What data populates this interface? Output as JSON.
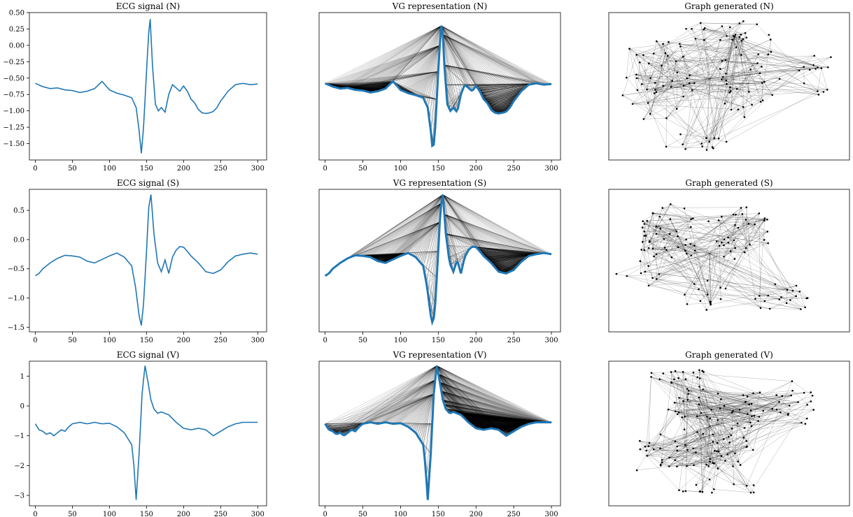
{
  "figure": {
    "background": "#ffffff",
    "line_color": "#1f77b4",
    "edge_color": "#000000",
    "node_color": "#000000"
  },
  "chart_data": [
    {
      "id": "ecg-n",
      "type": "line",
      "title": "ECG signal (N)",
      "xlim": [
        -8,
        312
      ],
      "ylim": [
        -1.75,
        0.5
      ],
      "xticks": [
        0,
        50,
        100,
        150,
        200,
        250,
        300
      ],
      "xtick_labels": [
        "0",
        "50",
        "100",
        "150",
        "200",
        "250",
        "300"
      ],
      "yticks": [
        0.5,
        0.25,
        0.0,
        -0.25,
        -0.5,
        -0.75,
        -1.0,
        -1.25,
        -1.5
      ],
      "ytick_labels": [
        "0.50",
        "0.25",
        "0.00",
        "−0.25",
        "−0.50",
        "−0.75",
        "−1.00",
        "−1.25",
        "−1.50"
      ],
      "x": [
        0,
        10,
        20,
        30,
        40,
        50,
        60,
        70,
        80,
        90,
        100,
        110,
        120,
        130,
        136,
        140,
        143,
        146,
        150,
        153,
        155,
        158,
        162,
        166,
        170,
        175,
        180,
        185,
        190,
        195,
        200,
        205,
        210,
        215,
        220,
        225,
        230,
        235,
        240,
        245,
        250,
        260,
        270,
        280,
        290,
        300
      ],
      "y": [
        -0.58,
        -0.63,
        -0.66,
        -0.65,
        -0.68,
        -0.69,
        -0.72,
        -0.7,
        -0.66,
        -0.55,
        -0.68,
        -0.73,
        -0.76,
        -0.8,
        -0.95,
        -1.3,
        -1.65,
        -1.25,
        -0.4,
        0.2,
        0.4,
        -0.3,
        -0.9,
        -1.0,
        -0.95,
        -1.02,
        -0.75,
        -0.6,
        -0.65,
        -0.7,
        -0.62,
        -0.7,
        -0.82,
        -0.88,
        -0.98,
        -1.03,
        -1.04,
        -1.03,
        -1.01,
        -0.95,
        -0.85,
        -0.7,
        -0.6,
        -0.58,
        -0.6,
        -0.59
      ]
    },
    {
      "id": "vg-n",
      "type": "line",
      "title": "VG representation (N)",
      "visibility_graph": true,
      "source": "ecg-n",
      "xlim": [
        -8,
        312
      ],
      "ylim": [
        -1.75,
        0.5
      ],
      "xticks": [
        0,
        50,
        100,
        150,
        200,
        250,
        300
      ],
      "xtick_labels": [
        "0",
        "50",
        "100",
        "150",
        "200",
        "250",
        "300"
      ],
      "yticks": [],
      "ytick_labels": []
    },
    {
      "id": "graph-n",
      "type": "network",
      "title": "Graph generated (N)"
    },
    {
      "id": "ecg-s",
      "type": "line",
      "title": "ECG signal (S)",
      "xlim": [
        -8,
        312
      ],
      "ylim": [
        -1.58,
        0.86
      ],
      "xticks": [
        0,
        50,
        100,
        150,
        200,
        250,
        300
      ],
      "xtick_labels": [
        "0",
        "50",
        "100",
        "150",
        "200",
        "250",
        "300"
      ],
      "yticks": [
        0.5,
        0.0,
        -0.5,
        -1.0,
        -1.5
      ],
      "ytick_labels": [
        "0.5",
        "0.0",
        "−0.5",
        "−1.0",
        "−1.5"
      ],
      "x": [
        0,
        5,
        10,
        20,
        30,
        40,
        50,
        60,
        70,
        80,
        90,
        100,
        110,
        120,
        130,
        135,
        140,
        143,
        146,
        150,
        153,
        156,
        160,
        165,
        170,
        175,
        180,
        185,
        190,
        195,
        200,
        205,
        210,
        220,
        230,
        240,
        250,
        260,
        270,
        280,
        290,
        300
      ],
      "y": [
        -0.62,
        -0.58,
        -0.5,
        -0.4,
        -0.32,
        -0.27,
        -0.28,
        -0.3,
        -0.37,
        -0.4,
        -0.34,
        -0.28,
        -0.23,
        -0.3,
        -0.45,
        -0.8,
        -1.3,
        -1.47,
        -1.1,
        -0.2,
        0.55,
        0.77,
        0.1,
        -0.4,
        -0.55,
        -0.35,
        -0.58,
        -0.3,
        -0.18,
        -0.12,
        -0.13,
        -0.2,
        -0.28,
        -0.4,
        -0.55,
        -0.58,
        -0.52,
        -0.38,
        -0.28,
        -0.25,
        -0.23,
        -0.25
      ]
    },
    {
      "id": "vg-s",
      "type": "line",
      "title": "VG representation (S)",
      "visibility_graph": true,
      "source": "ecg-s",
      "xlim": [
        -8,
        312
      ],
      "ylim": [
        -1.58,
        0.86
      ],
      "xticks": [
        0,
        50,
        100,
        150,
        200,
        250,
        300
      ],
      "xtick_labels": [
        "0",
        "50",
        "100",
        "150",
        "200",
        "250",
        "300"
      ],
      "yticks": [],
      "ytick_labels": []
    },
    {
      "id": "graph-s",
      "type": "network",
      "title": "Graph generated (S)"
    },
    {
      "id": "ecg-v",
      "type": "line",
      "title": "ECG signal (V)",
      "xlim": [
        -8,
        312
      ],
      "ylim": [
        -3.35,
        1.5
      ],
      "xticks": [
        0,
        50,
        100,
        150,
        200,
        250,
        300
      ],
      "xtick_labels": [
        "0",
        "50",
        "100",
        "150",
        "200",
        "250",
        "300"
      ],
      "yticks": [
        1,
        0,
        -1,
        -2,
        -3
      ],
      "ytick_labels": [
        "1",
        "0",
        "−1",
        "−2",
        "−3"
      ],
      "x": [
        0,
        5,
        10,
        15,
        20,
        25,
        30,
        35,
        40,
        45,
        50,
        60,
        70,
        80,
        90,
        100,
        110,
        120,
        125,
        130,
        133,
        136,
        140,
        144,
        148,
        152,
        156,
        160,
        165,
        170,
        175,
        180,
        190,
        200,
        210,
        220,
        230,
        240,
        250,
        260,
        270,
        280,
        290,
        300
      ],
      "y": [
        -0.6,
        -0.8,
        -0.85,
        -0.95,
        -0.9,
        -1.0,
        -0.9,
        -0.8,
        -0.85,
        -0.7,
        -0.6,
        -0.55,
        -0.6,
        -0.55,
        -0.6,
        -0.58,
        -0.7,
        -0.9,
        -1.1,
        -1.3,
        -2.0,
        -3.15,
        -1.6,
        0.4,
        1.35,
        0.8,
        0.2,
        -0.1,
        -0.25,
        -0.2,
        -0.25,
        -0.3,
        -0.55,
        -0.75,
        -0.8,
        -0.75,
        -0.8,
        -1.0,
        -0.85,
        -0.7,
        -0.6,
        -0.55,
        -0.55,
        -0.55
      ]
    },
    {
      "id": "vg-v",
      "type": "line",
      "title": "VG representation (V)",
      "visibility_graph": true,
      "source": "ecg-v",
      "xlim": [
        -8,
        312
      ],
      "ylim": [
        -3.35,
        1.5
      ],
      "xticks": [
        0,
        50,
        100,
        150,
        200,
        250,
        300
      ],
      "xtick_labels": [
        "0",
        "50",
        "100",
        "150",
        "200",
        "250",
        "300"
      ],
      "yticks": [],
      "ytick_labels": []
    },
    {
      "id": "graph-v",
      "type": "network",
      "title": "Graph generated (V)"
    }
  ]
}
